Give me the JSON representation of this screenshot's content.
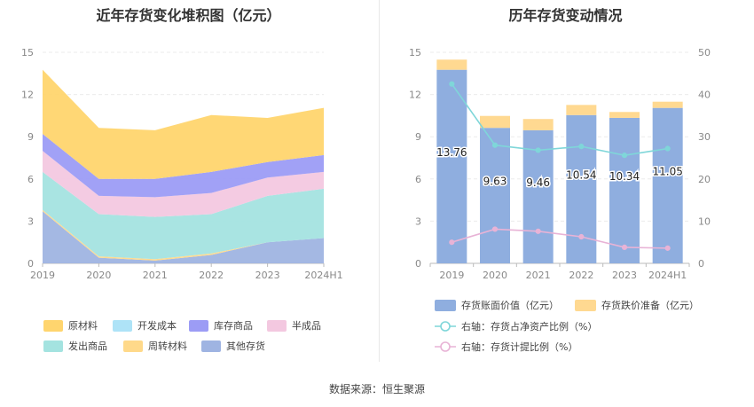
{
  "left_title": "近年存货变化堆积图（亿元）",
  "right_title": "历年存货变动情况",
  "source": "数据来源：恒生聚源",
  "chart_data": [
    {
      "type": "area",
      "stacked": true,
      "title": "近年存货变化堆积图（亿元）",
      "categories": [
        "2019",
        "2020",
        "2021",
        "2022",
        "2023",
        "2024H1"
      ],
      "yticks": [
        "0",
        "3",
        "6",
        "9",
        "12",
        "15"
      ],
      "ylim": [
        0,
        15
      ],
      "series": [
        {
          "name": "其他存货",
          "color": "#9FB4E2",
          "values": [
            3.7,
            0.4,
            0.2,
            0.6,
            1.5,
            1.8
          ]
        },
        {
          "name": "周转材料",
          "color": "#FFD98A",
          "values": [
            0.1,
            0.1,
            0.1,
            0.1,
            0.0,
            0.0
          ]
        },
        {
          "name": "发出商品",
          "color": "#A4E3E0",
          "values": [
            2.7,
            3.0,
            3.0,
            2.8,
            3.3,
            3.5
          ]
        },
        {
          "name": "半成品",
          "color": "#F3C8E0",
          "values": [
            1.5,
            1.3,
            1.4,
            1.5,
            1.3,
            1.2
          ]
        },
        {
          "name": "库存商品",
          "color": "#9C9CF5",
          "values": [
            1.2,
            1.2,
            1.3,
            1.5,
            1.1,
            1.2
          ]
        },
        {
          "name": "开发成本",
          "color": "#AEE3F7",
          "values": [
            0.0,
            0.0,
            0.0,
            0.0,
            0.0,
            0.0
          ]
        },
        {
          "name": "原材料",
          "color": "#FFD56E",
          "values": [
            4.56,
            3.63,
            3.46,
            4.04,
            3.14,
            3.35
          ]
        }
      ],
      "legend": [
        "原材料",
        "开发成本",
        "库存商品",
        "半成品",
        "发出商品",
        "周转材料",
        "其他存货"
      ]
    },
    {
      "type": "bar",
      "title": "历年存货变动情况",
      "categories": [
        "2019",
        "2020",
        "2021",
        "2022",
        "2023",
        "2024H1"
      ],
      "yticks_left": [
        "0",
        "3",
        "6",
        "9",
        "12",
        "15"
      ],
      "yticks_right": [
        "0",
        "10",
        "20",
        "30",
        "40",
        "50"
      ],
      "ylim_left": [
        0,
        15
      ],
      "ylim_right": [
        0,
        50
      ],
      "series": [
        {
          "name": "存货账面价值（亿元）",
          "axis": "left",
          "color": "#8FAEDF",
          "values": [
            13.76,
            9.63,
            9.46,
            10.54,
            10.34,
            11.05
          ],
          "labels": [
            "13.76",
            "9.63",
            "9.46",
            "10.54",
            "10.34",
            "11.05"
          ]
        },
        {
          "name": "存货跌价准备（亿元）",
          "axis": "left",
          "color": "#FFD991",
          "values": [
            0.72,
            0.85,
            0.8,
            0.72,
            0.42,
            0.44
          ]
        },
        {
          "name": "右轴：存货占净资产比例（%）",
          "axis": "right",
          "color": "#7FD6D9",
          "values": [
            42.5,
            28.0,
            26.8,
            27.7,
            25.6,
            27.2
          ]
        },
        {
          "name": "右轴：存货计提比例（%）",
          "axis": "right",
          "color": "#E8B3D6",
          "values": [
            5.0,
            8.1,
            7.6,
            6.3,
            3.8,
            3.6
          ]
        }
      ]
    }
  ]
}
